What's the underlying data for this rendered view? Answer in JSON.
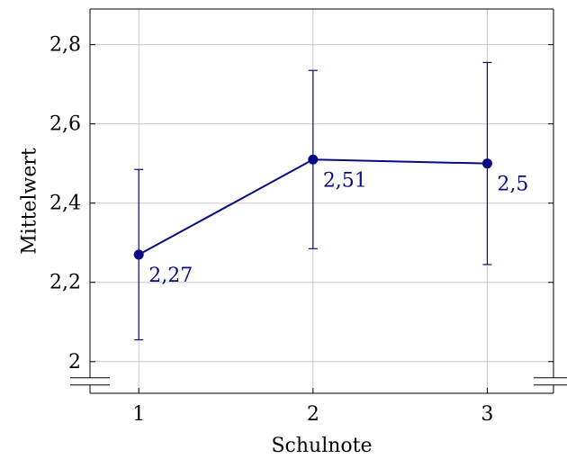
{
  "chart_data": {
    "type": "line",
    "xlabel": "Schulnote",
    "ylabel": "Mittelwert",
    "x": [
      1,
      2,
      3
    ],
    "x_tick_labels": [
      "1",
      "2",
      "3"
    ],
    "y_ticks": [
      2.0,
      2.2,
      2.4,
      2.6,
      2.8
    ],
    "y_tick_labels": [
      "2",
      "2,2",
      "2,4",
      "2,6",
      "2,8"
    ],
    "ylim": [
      1.92,
      2.89
    ],
    "y_axis_broken": true,
    "grid": true,
    "series": [
      {
        "values": [
          2.27,
          2.51,
          2.5
        ],
        "error_low": [
          2.055,
          2.285,
          2.245
        ],
        "error_high": [
          2.485,
          2.735,
          2.755
        ],
        "data_labels": [
          "2,27",
          "2,51",
          "2,5"
        ],
        "color": "#0a0a82"
      }
    ]
  }
}
